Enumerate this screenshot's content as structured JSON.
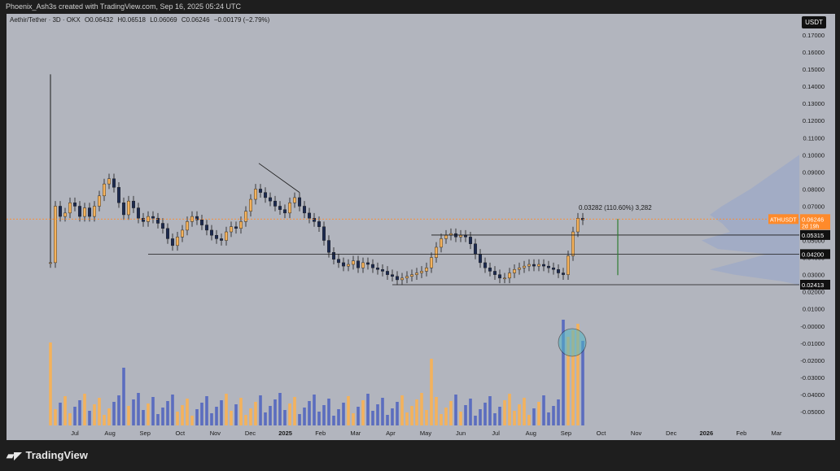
{
  "header": {
    "credit": "Phoenix_Ash3s created with TradingView.com, Sep 16, 2025 05:24 UTC"
  },
  "legend": {
    "symbol": "Aethir/Tether · 3D · OKX",
    "open": "O0.06432",
    "high": "H0.06518",
    "low": "L0.06069",
    "close": "C0.06246",
    "change": "−0.00179 (−2.79%)"
  },
  "currency_button": "USDT",
  "footer": {
    "brand": "TradingView"
  },
  "colors": {
    "background": "#b2b5be",
    "bull": "#f4b25c",
    "bear": "#1c2a4f",
    "volume_bull": "#f4b25c",
    "volume_bear": "#5b6dbf",
    "price_line": "#ff8a2a",
    "measure": "#2e7d32",
    "highlight_circle": "#4fb6c7",
    "volume_profile": "#8fa1cf"
  },
  "chart_data": {
    "type": "candlestick",
    "timeframe": "3D",
    "x_tick_labels": [
      "Jul",
      "Aug",
      "Sep",
      "Oct",
      "Nov",
      "Dec",
      "2025",
      "Feb",
      "Mar",
      "Apr",
      "May",
      "Jun",
      "Jul",
      "Aug",
      "Sep",
      "Oct",
      "Nov",
      "Dec",
      "2026",
      "Feb",
      "Mar"
    ],
    "y_tick_labels": [
      "0.17000",
      "0.16000",
      "0.15000",
      "0.14000",
      "0.13000",
      "0.12000",
      "0.11000",
      "0.10000",
      "0.09000",
      "0.08000",
      "0.07000",
      "0.06000",
      "0.05000",
      "0.04000",
      "0.03000",
      "0.02000",
      "0.01000",
      "-0.00000",
      "-0.01000",
      "-0.02000",
      "-0.03000",
      "-0.04000",
      "-0.05000"
    ],
    "price_labels": [
      {
        "text": "ATHUSDT",
        "value": "0.06246",
        "sub": "2d 19h"
      },
      {
        "text": "",
        "value": "0.05315"
      },
      {
        "text": "",
        "value": "0.04200"
      },
      {
        "text": "",
        "value": "0.02413"
      }
    ],
    "horizontal_levels": [
      0.05315,
      0.042,
      0.02413
    ],
    "measurement": {
      "label": "0.03282 (110.60%) 3,282",
      "from": 0.0297,
      "to": 0.06252
    },
    "close_series": [
      0.037,
      0.07,
      0.064,
      0.066,
      0.072,
      0.07,
      0.064,
      0.069,
      0.064,
      0.07,
      0.076,
      0.083,
      0.086,
      0.081,
      0.072,
      0.065,
      0.073,
      0.069,
      0.063,
      0.061,
      0.064,
      0.063,
      0.06,
      0.057,
      0.051,
      0.047,
      0.052,
      0.056,
      0.061,
      0.064,
      0.062,
      0.059,
      0.056,
      0.053,
      0.051,
      0.05,
      0.055,
      0.058,
      0.057,
      0.061,
      0.067,
      0.074,
      0.08,
      0.078,
      0.075,
      0.073,
      0.07,
      0.068,
      0.066,
      0.072,
      0.075,
      0.07,
      0.066,
      0.063,
      0.061,
      0.058,
      0.05,
      0.043,
      0.039,
      0.037,
      0.035,
      0.036,
      0.038,
      0.034,
      0.037,
      0.036,
      0.034,
      0.033,
      0.032,
      0.03,
      0.029,
      0.027,
      0.028,
      0.029,
      0.03,
      0.031,
      0.032,
      0.034,
      0.04,
      0.046,
      0.051,
      0.053,
      0.054,
      0.052,
      0.053,
      0.052,
      0.048,
      0.042,
      0.037,
      0.034,
      0.032,
      0.03,
      0.028,
      0.028,
      0.031,
      0.033,
      0.034,
      0.035,
      0.036,
      0.035,
      0.036,
      0.035,
      0.034,
      0.033,
      0.031,
      0.03,
      0.041,
      0.055,
      0.063,
      0.062
    ]
  }
}
